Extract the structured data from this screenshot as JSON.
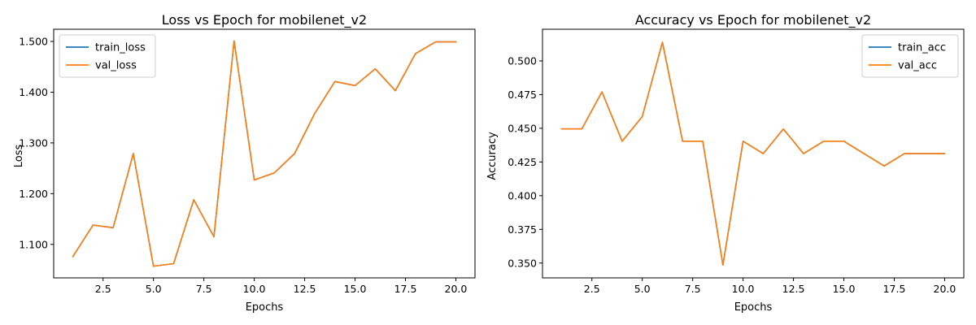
{
  "colors": {
    "train": "#1f77b4",
    "val": "#ff7f0e"
  },
  "chart_data": [
    {
      "type": "line",
      "title": "Loss vs Epoch for mobilenet_v2",
      "xlabel": "Epochs",
      "ylabel": "Loss",
      "xlim": [
        0.05,
        20.95
      ],
      "ylim": [
        1.034,
        1.524
      ],
      "xticks": [
        2.5,
        5.0,
        7.5,
        10.0,
        12.5,
        15.0,
        17.5,
        20.0
      ],
      "yticks": [
        1.1,
        1.2,
        1.3,
        1.4,
        1.5
      ],
      "grid": false,
      "legend_position": "top-left",
      "x": [
        1,
        2,
        3,
        4,
        5,
        6,
        7,
        8,
        9,
        10,
        11,
        12,
        13,
        14,
        15,
        16,
        17,
        18,
        19,
        20
      ],
      "series": [
        {
          "name": "train_loss",
          "color_key": "train",
          "values": [
            1.076,
            1.138,
            1.133,
            1.279,
            1.057,
            1.062,
            1.188,
            1.115,
            1.501,
            1.227,
            1.241,
            1.279,
            1.358,
            1.421,
            1.413,
            1.446,
            1.403,
            1.476,
            1.499,
            1.499
          ]
        },
        {
          "name": "val_loss",
          "color_key": "val",
          "values": [
            1.076,
            1.138,
            1.133,
            1.279,
            1.057,
            1.062,
            1.188,
            1.115,
            1.501,
            1.227,
            1.241,
            1.279,
            1.358,
            1.421,
            1.413,
            1.446,
            1.403,
            1.476,
            1.499,
            1.499
          ]
        }
      ]
    },
    {
      "type": "line",
      "title": "Accuracy vs Epoch for mobilenet_v2",
      "xlabel": "Epochs",
      "ylabel": "Accuracy",
      "xlim": [
        0.05,
        20.95
      ],
      "ylim": [
        0.339,
        0.5235
      ],
      "xticks": [
        2.5,
        5.0,
        7.5,
        10.0,
        12.5,
        15.0,
        17.5,
        20.0
      ],
      "yticks": [
        0.35,
        0.375,
        0.4,
        0.425,
        0.45,
        0.475,
        0.5
      ],
      "grid": false,
      "legend_position": "top-right",
      "x": [
        1,
        2,
        3,
        4,
        5,
        6,
        7,
        8,
        9,
        10,
        11,
        12,
        13,
        14,
        15,
        16,
        17,
        18,
        19,
        20
      ],
      "series": [
        {
          "name": "train_acc",
          "color_key": "train",
          "values": [
            0.4495,
            0.4495,
            0.477,
            0.4404,
            0.4587,
            0.5138,
            0.4404,
            0.4404,
            0.3486,
            0.4404,
            0.4312,
            0.4495,
            0.4312,
            0.4404,
            0.4404,
            0.4312,
            0.422,
            0.4312,
            0.4312,
            0.4312
          ]
        },
        {
          "name": "val_acc",
          "color_key": "val",
          "values": [
            0.4495,
            0.4495,
            0.477,
            0.4404,
            0.4587,
            0.5138,
            0.4404,
            0.4404,
            0.3486,
            0.4404,
            0.4312,
            0.4495,
            0.4312,
            0.4404,
            0.4404,
            0.4312,
            0.422,
            0.4312,
            0.4312,
            0.4312
          ]
        }
      ]
    }
  ]
}
